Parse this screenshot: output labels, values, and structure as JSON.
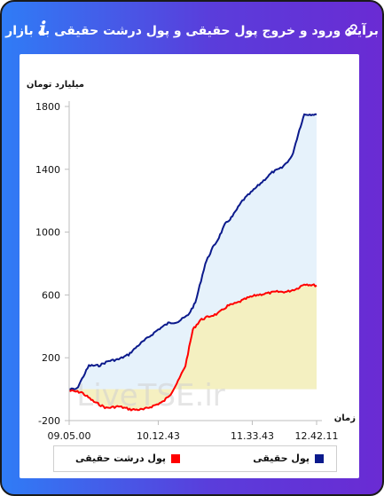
{
  "header": {
    "title": "برآیند ورود و خروج پول حقیقی و پول درشت حقیقی به بازار",
    "info_glyph": "i",
    "link_icon": "link-icon",
    "info_icon": "info-icon"
  },
  "colors": {
    "frame_start": "#2f7cf6",
    "frame_end": "#6a2bd3",
    "real_money_line": "#0b1a8c",
    "real_money_fill": "#e6f2fb",
    "big_money_line": "#ff0000",
    "big_money_fill": "#f4efbe"
  },
  "watermark": "LiveTSE.ir",
  "chart_data": {
    "type": "area",
    "title": "",
    "ylabel": "میلیارد تومان",
    "xlabel": "زمان",
    "ylim": [
      -200,
      1800
    ],
    "yticks": [
      -200,
      200,
      600,
      1000,
      1400,
      1800
    ],
    "xticks": [
      "09.05.00",
      "10.12.43",
      "11.33.43",
      "12.42.11"
    ],
    "x_positions_fraction_of_session": [
      0,
      0.36,
      0.74,
      1.0
    ],
    "grid": false,
    "legend_position": "bottom",
    "series": [
      {
        "name": "پول حقیقی",
        "color": "#0b1a8c",
        "fill": "#e6f2fb",
        "x": [
          0,
          0.03,
          0.08,
          0.12,
          0.16,
          0.2,
          0.24,
          0.28,
          0.32,
          0.36,
          0.4,
          0.44,
          0.48,
          0.51,
          0.55,
          0.58,
          0.6,
          0.63,
          0.66,
          0.7,
          0.74,
          0.78,
          0.82,
          0.86,
          0.9,
          0.93,
          0.95,
          1.0
        ],
        "values": [
          0,
          0,
          150,
          150,
          180,
          190,
          220,
          280,
          330,
          380,
          420,
          430,
          470,
          550,
          800,
          900,
          950,
          1050,
          1100,
          1200,
          1260,
          1320,
          1380,
          1410,
          1480,
          1650,
          1750,
          1750
        ]
      },
      {
        "name": "پول درشت حقیقی",
        "color": "#ff0000",
        "fill": "#f4efbe",
        "x": [
          0,
          0.05,
          0.1,
          0.15,
          0.2,
          0.25,
          0.3,
          0.35,
          0.38,
          0.41,
          0.44,
          0.47,
          0.5,
          0.53,
          0.56,
          0.6,
          0.64,
          0.68,
          0.72,
          0.76,
          0.8,
          0.84,
          0.88,
          0.92,
          0.95,
          1.0
        ],
        "values": [
          -10,
          -20,
          -80,
          -120,
          -110,
          -130,
          -130,
          -100,
          -80,
          -30,
          50,
          150,
          380,
          440,
          460,
          480,
          530,
          550,
          580,
          600,
          610,
          620,
          620,
          640,
          670,
          660
        ]
      }
    ]
  }
}
